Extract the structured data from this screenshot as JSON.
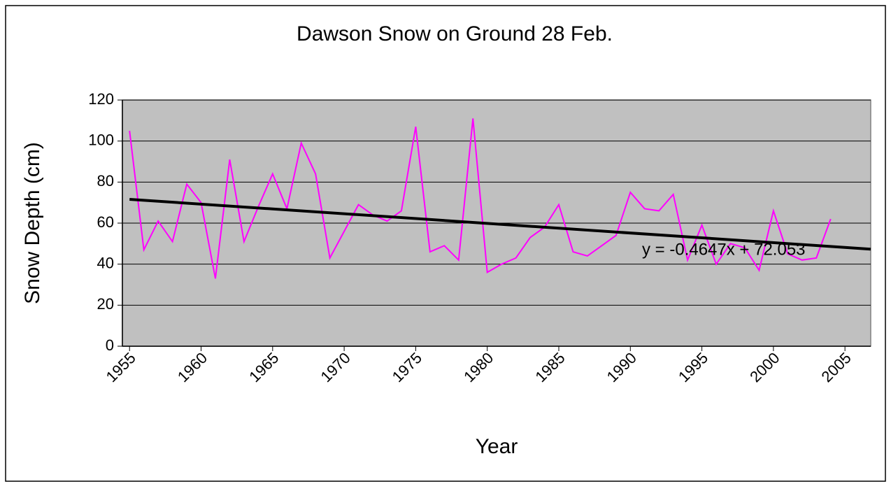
{
  "chart_data": {
    "type": "line",
    "title": "Dawson Snow on Ground 28 Feb.",
    "x_label": "Year",
    "y_label": "Snow Depth (cm)",
    "x": [
      1955,
      1956,
      1957,
      1958,
      1959,
      1960,
      1961,
      1962,
      1963,
      1964,
      1965,
      1966,
      1967,
      1968,
      1969,
      1970,
      1971,
      1972,
      1973,
      1974,
      1975,
      1976,
      1977,
      1978,
      1979,
      1980,
      1981,
      1982,
      1983,
      1984,
      1985,
      1986,
      1987,
      1988,
      1989,
      1990,
      1991,
      1992,
      1993,
      1994,
      1995,
      1996,
      1997,
      1998,
      1999,
      2000,
      2001,
      2002,
      2003,
      2004
    ],
    "series": [
      {
        "name": "Snow Depth",
        "color": "#ff00ff",
        "values": [
          105,
          47,
          61,
          51,
          79,
          70,
          33,
          91,
          51,
          68,
          84,
          67,
          99,
          84,
          43,
          56,
          69,
          64,
          61,
          66,
          107,
          46,
          49,
          42,
          111,
          36,
          40,
          43,
          53,
          58,
          69,
          46,
          44,
          49,
          54,
          75,
          67,
          66,
          74,
          42,
          59,
          40,
          50,
          48,
          37,
          66,
          45,
          42,
          43,
          62
        ]
      }
    ],
    "trendline": {
      "label": "y = -0.4647x + 72.053",
      "color": "#000000",
      "x": [
        1955,
        2006.8
      ],
      "values": [
        71.6,
        47.3
      ]
    },
    "xlim": [
      1954.5,
      2006.8
    ],
    "xticks": [
      1955,
      1960,
      1965,
      1970,
      1975,
      1980,
      1985,
      1990,
      1995,
      2000,
      2005
    ],
    "ylim": [
      0,
      120
    ],
    "yticks": [
      0,
      20,
      40,
      60,
      80,
      100,
      120
    ],
    "grid": true
  }
}
